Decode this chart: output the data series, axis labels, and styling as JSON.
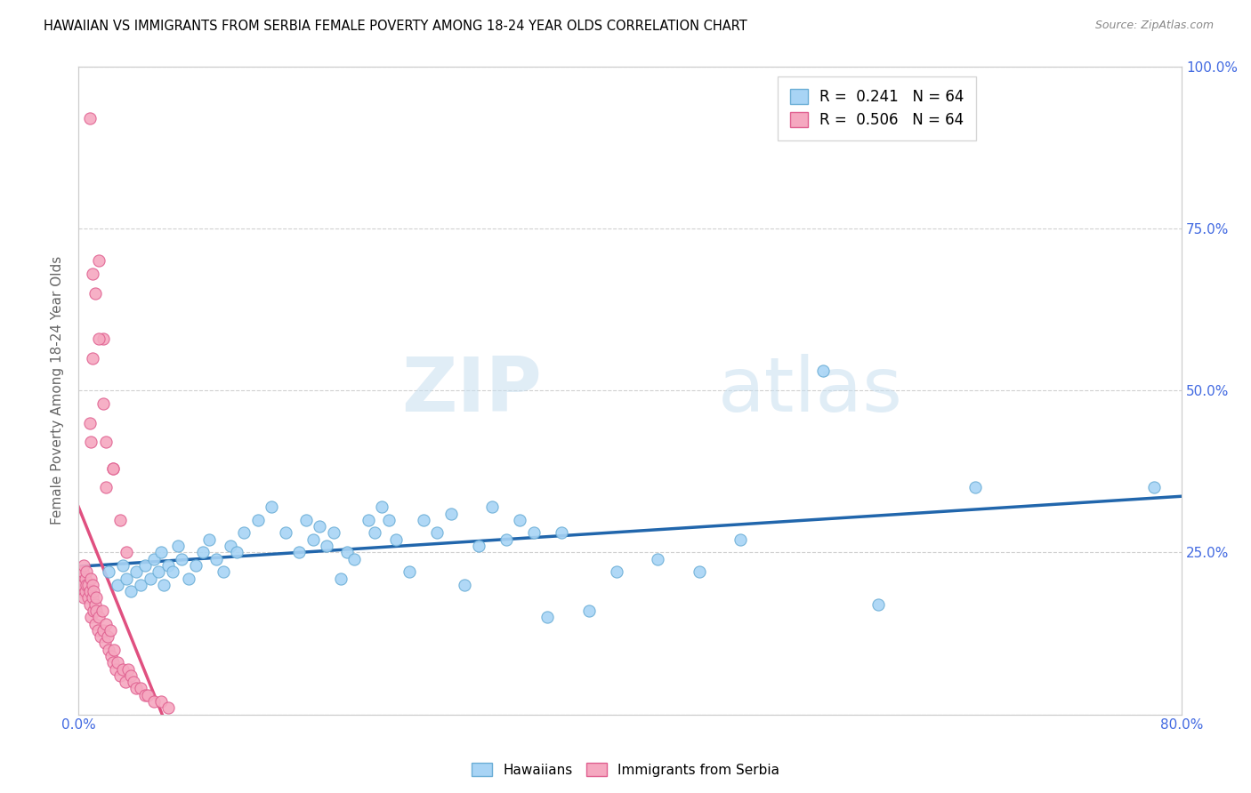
{
  "title": "HAWAIIAN VS IMMIGRANTS FROM SERBIA FEMALE POVERTY AMONG 18-24 YEAR OLDS CORRELATION CHART",
  "source": "Source: ZipAtlas.com",
  "ylabel": "Female Poverty Among 18-24 Year Olds",
  "xlim": [
    0.0,
    0.8
  ],
  "ylim": [
    0.0,
    1.0
  ],
  "yticks": [
    0.0,
    0.25,
    0.5,
    0.75,
    1.0
  ],
  "yticklabels_right": [
    "",
    "25.0%",
    "50.0%",
    "75.0%",
    "100.0%"
  ],
  "hawaiians_R": 0.241,
  "hawaiians_N": 64,
  "serbia_R": 0.506,
  "serbia_N": 64,
  "legend_label1": "Hawaiians",
  "legend_label2": "Immigrants from Serbia",
  "color_hawaiians": "#a8d4f5",
  "color_serbia": "#f5a8c0",
  "color_edge_hawaiians": "#6baed6",
  "color_edge_serbia": "#e06090",
  "color_trend_hawaiians": "#2166ac",
  "color_trend_serbia": "#e05080",
  "watermark_zip": "ZIP",
  "watermark_atlas": "atlas",
  "hawaiians_x": [
    0.022,
    0.028,
    0.032,
    0.035,
    0.038,
    0.042,
    0.045,
    0.048,
    0.052,
    0.055,
    0.058,
    0.06,
    0.062,
    0.065,
    0.068,
    0.072,
    0.075,
    0.08,
    0.085,
    0.09,
    0.095,
    0.1,
    0.105,
    0.11,
    0.115,
    0.12,
    0.13,
    0.14,
    0.15,
    0.16,
    0.165,
    0.17,
    0.175,
    0.18,
    0.185,
    0.19,
    0.195,
    0.2,
    0.21,
    0.215,
    0.22,
    0.225,
    0.23,
    0.24,
    0.25,
    0.26,
    0.27,
    0.28,
    0.29,
    0.3,
    0.31,
    0.32,
    0.33,
    0.34,
    0.35,
    0.37,
    0.39,
    0.42,
    0.45,
    0.48,
    0.54,
    0.58,
    0.65,
    0.78
  ],
  "hawaiians_y": [
    0.22,
    0.2,
    0.23,
    0.21,
    0.19,
    0.22,
    0.2,
    0.23,
    0.21,
    0.24,
    0.22,
    0.25,
    0.2,
    0.23,
    0.22,
    0.26,
    0.24,
    0.21,
    0.23,
    0.25,
    0.27,
    0.24,
    0.22,
    0.26,
    0.25,
    0.28,
    0.3,
    0.32,
    0.28,
    0.25,
    0.3,
    0.27,
    0.29,
    0.26,
    0.28,
    0.21,
    0.25,
    0.24,
    0.3,
    0.28,
    0.32,
    0.3,
    0.27,
    0.22,
    0.3,
    0.28,
    0.31,
    0.2,
    0.26,
    0.32,
    0.27,
    0.3,
    0.28,
    0.15,
    0.28,
    0.16,
    0.22,
    0.24,
    0.22,
    0.27,
    0.53,
    0.17,
    0.35,
    0.35
  ],
  "serbia_x": [
    0.001,
    0.001,
    0.002,
    0.002,
    0.003,
    0.003,
    0.004,
    0.004,
    0.005,
    0.005,
    0.006,
    0.006,
    0.007,
    0.007,
    0.008,
    0.008,
    0.009,
    0.009,
    0.01,
    0.01,
    0.011,
    0.011,
    0.012,
    0.012,
    0.013,
    0.013,
    0.014,
    0.015,
    0.016,
    0.017,
    0.018,
    0.019,
    0.02,
    0.021,
    0.022,
    0.023,
    0.024,
    0.025,
    0.026,
    0.027,
    0.028,
    0.03,
    0.032,
    0.034,
    0.036,
    0.038,
    0.04,
    0.042,
    0.045,
    0.048,
    0.05,
    0.055,
    0.06,
    0.065,
    0.008,
    0.009,
    0.01,
    0.012,
    0.015,
    0.018,
    0.02,
    0.025,
    0.03,
    0.035
  ],
  "serbia_y": [
    0.22,
    0.2,
    0.21,
    0.19,
    0.22,
    0.2,
    0.18,
    0.23,
    0.19,
    0.21,
    0.2,
    0.22,
    0.18,
    0.2,
    0.17,
    0.19,
    0.15,
    0.21,
    0.18,
    0.2,
    0.16,
    0.19,
    0.14,
    0.17,
    0.16,
    0.18,
    0.13,
    0.15,
    0.12,
    0.16,
    0.13,
    0.11,
    0.14,
    0.12,
    0.1,
    0.13,
    0.09,
    0.08,
    0.1,
    0.07,
    0.08,
    0.06,
    0.07,
    0.05,
    0.07,
    0.06,
    0.05,
    0.04,
    0.04,
    0.03,
    0.03,
    0.02,
    0.02,
    0.01,
    0.45,
    0.42,
    0.55,
    0.65,
    0.7,
    0.58,
    0.35,
    0.38,
    0.3,
    0.25
  ],
  "serbia_outliers_x": [
    0.008,
    0.01,
    0.015,
    0.018,
    0.02,
    0.025
  ],
  "serbia_outliers_y": [
    0.92,
    0.68,
    0.58,
    0.48,
    0.42,
    0.38
  ]
}
